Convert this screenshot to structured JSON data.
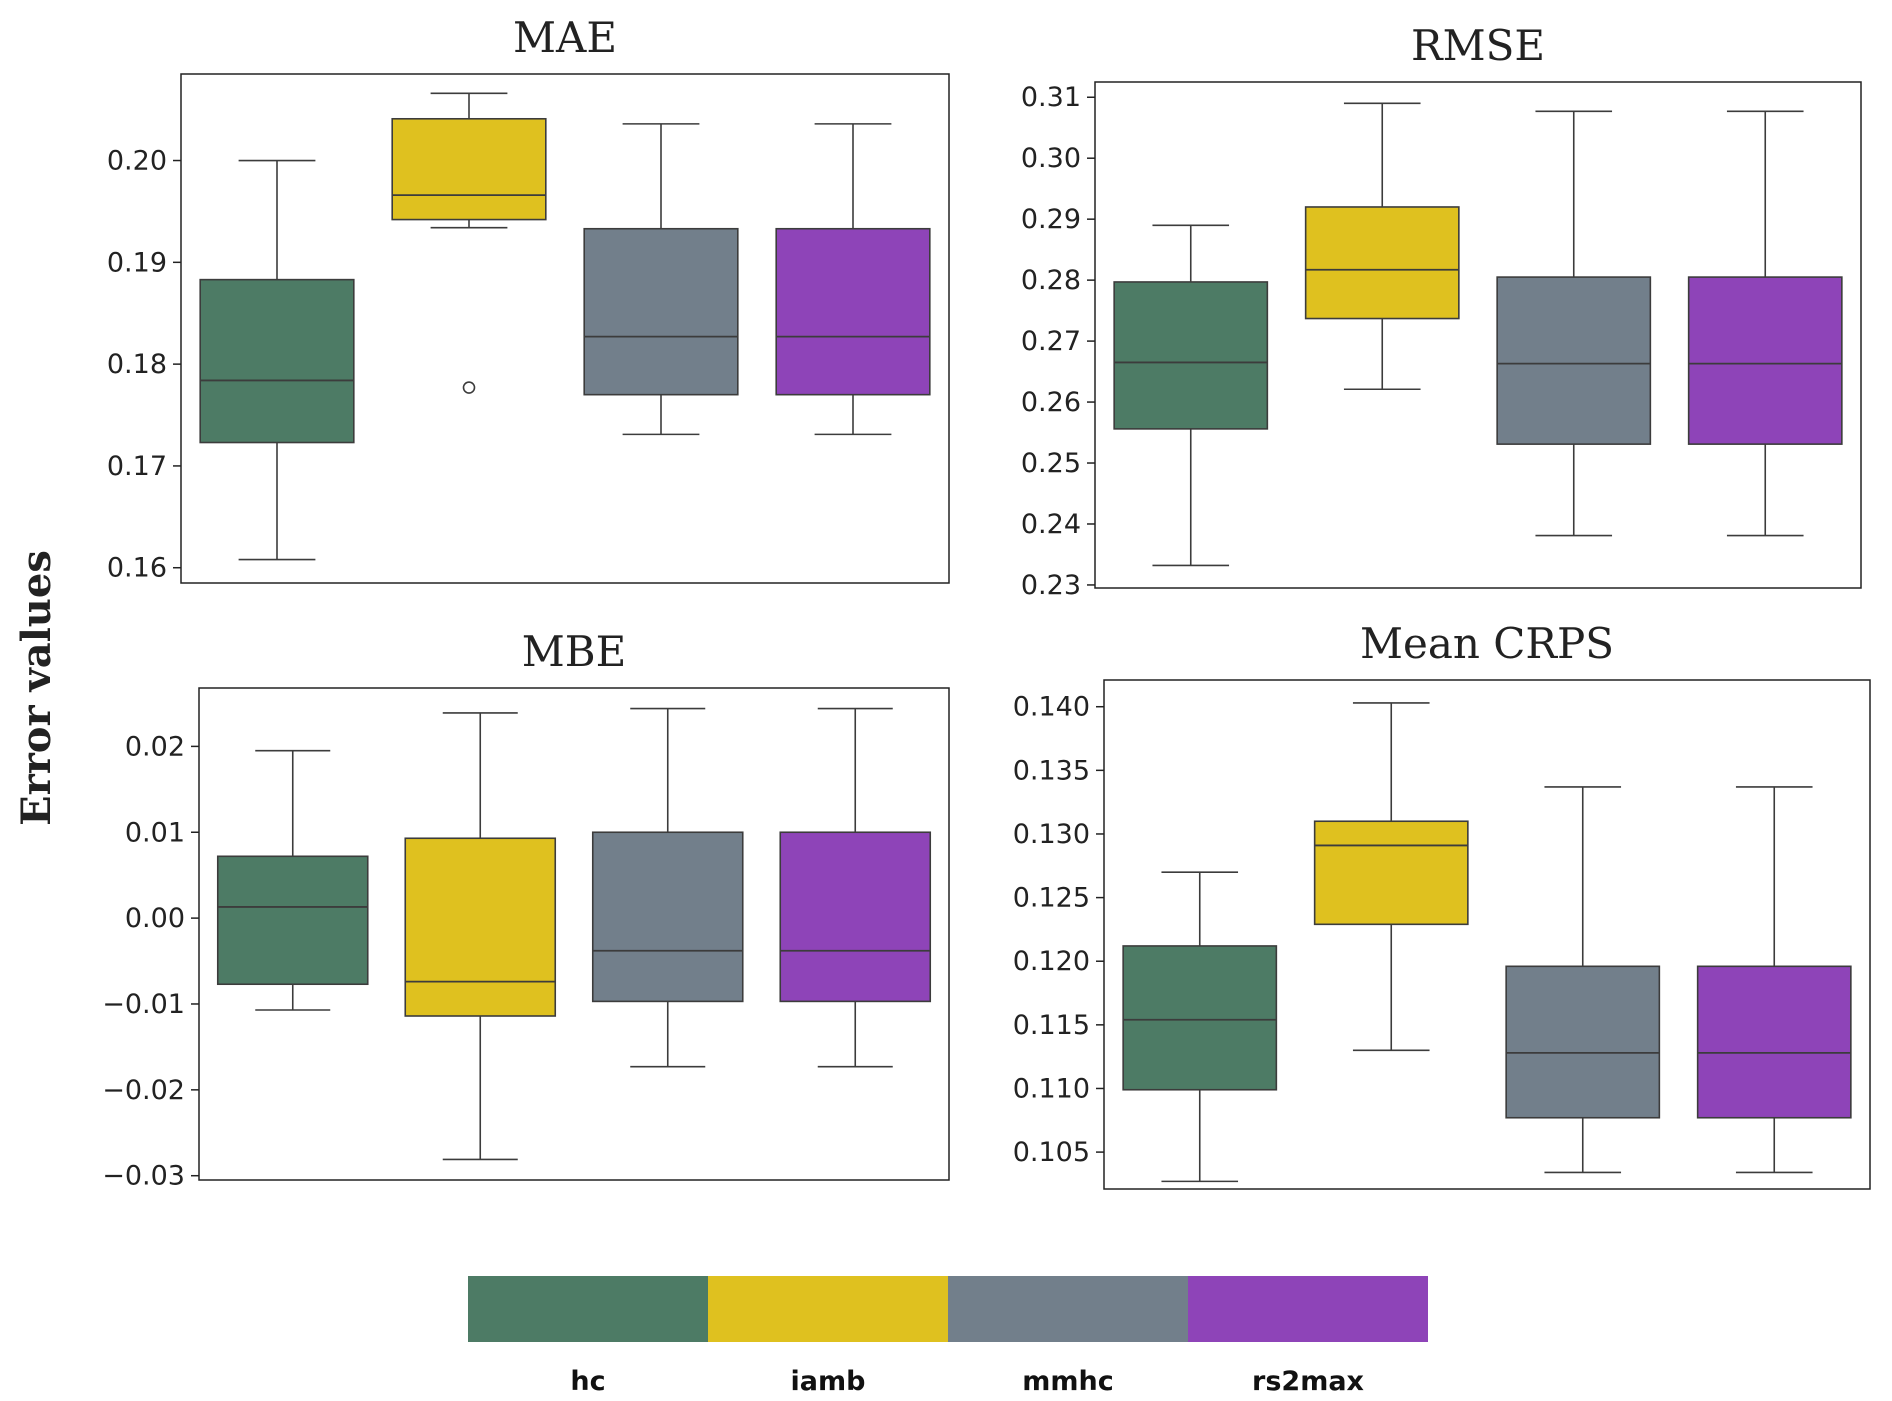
{
  "figure": {
    "ylabel": "Error values"
  },
  "legend": {
    "entries": [
      {
        "label": "hc",
        "color": "#4d7b65"
      },
      {
        "label": "iamb",
        "color": "#dfc11f"
      },
      {
        "label": "mmhc",
        "color": "#727f8b"
      },
      {
        "label": "rs2max",
        "color": "#8e44b8"
      }
    ]
  },
  "chart_data": [
    {
      "type": "box",
      "title": "MAE",
      "categories": [
        "hc",
        "iamb",
        "mmhc",
        "rs2max"
      ],
      "ylim": [
        0.1585,
        0.2085
      ],
      "ticks": [
        0.16,
        0.17,
        0.18,
        0.19,
        0.2
      ],
      "tick_labels": [
        "0.16",
        "0.17",
        "0.18",
        "0.19",
        "0.20"
      ],
      "boxes": [
        {
          "name": "hc",
          "whislo": 0.1608,
          "q1": 0.1723,
          "med": 0.1784,
          "q3": 0.1883,
          "whishi": 0.2,
          "fliers": []
        },
        {
          "name": "iamb",
          "whislo": 0.1934,
          "q1": 0.1942,
          "med": 0.1966,
          "q3": 0.2041,
          "whishi": 0.2066,
          "fliers": [
            0.1777
          ]
        },
        {
          "name": "mmhc",
          "whislo": 0.1731,
          "q1": 0.177,
          "med": 0.1827,
          "q3": 0.1933,
          "whishi": 0.2036,
          "fliers": []
        },
        {
          "name": "rs2max",
          "whislo": 0.1731,
          "q1": 0.177,
          "med": 0.1827,
          "q3": 0.1933,
          "whishi": 0.2036,
          "fliers": []
        }
      ]
    },
    {
      "type": "box",
      "title": "RMSE",
      "categories": [
        "hc",
        "iamb",
        "mmhc",
        "rs2max"
      ],
      "ylim": [
        0.2295,
        0.3125
      ],
      "ticks": [
        0.23,
        0.24,
        0.25,
        0.26,
        0.27,
        0.28,
        0.29,
        0.3,
        0.31
      ],
      "tick_labels": [
        "0.23",
        "0.24",
        "0.25",
        "0.26",
        "0.27",
        "0.28",
        "0.29",
        "0.30",
        "0.31"
      ],
      "boxes": [
        {
          "name": "hc",
          "whislo": 0.2332,
          "q1": 0.2556,
          "med": 0.2665,
          "q3": 0.2797,
          "whishi": 0.289,
          "fliers": []
        },
        {
          "name": "iamb",
          "whislo": 0.2621,
          "q1": 0.2737,
          "med": 0.2817,
          "q3": 0.292,
          "whishi": 0.309,
          "fliers": []
        },
        {
          "name": "mmhc",
          "whislo": 0.2381,
          "q1": 0.2531,
          "med": 0.2663,
          "q3": 0.2805,
          "whishi": 0.3077,
          "fliers": []
        },
        {
          "name": "rs2max",
          "whislo": 0.2381,
          "q1": 0.2531,
          "med": 0.2663,
          "q3": 0.2805,
          "whishi": 0.3077,
          "fliers": []
        }
      ]
    },
    {
      "type": "box",
      "title": "MBE",
      "categories": [
        "hc",
        "iamb",
        "mmhc",
        "rs2max"
      ],
      "ylim": [
        -0.0305,
        0.0268
      ],
      "ticks": [
        -0.03,
        -0.02,
        -0.01,
        0.0,
        0.01,
        0.02
      ],
      "tick_labels": [
        "−0.03",
        "−0.02",
        "−0.01",
        "0.00",
        "0.01",
        "0.02"
      ],
      "boxes": [
        {
          "name": "hc",
          "whislo": -0.0107,
          "q1": -0.0077,
          "med": 0.0013,
          "q3": 0.0072,
          "whishi": 0.0195,
          "fliers": []
        },
        {
          "name": "iamb",
          "whislo": -0.0281,
          "q1": -0.0114,
          "med": -0.0074,
          "q3": 0.0093,
          "whishi": 0.0239,
          "fliers": []
        },
        {
          "name": "mmhc",
          "whislo": -0.0173,
          "q1": -0.0097,
          "med": -0.0038,
          "q3": 0.01,
          "whishi": 0.0244,
          "fliers": []
        },
        {
          "name": "rs2max",
          "whislo": -0.0173,
          "q1": -0.0097,
          "med": -0.0038,
          "q3": 0.01,
          "whishi": 0.0244,
          "fliers": []
        }
      ]
    },
    {
      "type": "box",
      "title": "Mean CRPS",
      "categories": [
        "hc",
        "iamb",
        "mmhc",
        "rs2max"
      ],
      "ylim": [
        0.1021,
        0.1421
      ],
      "ticks": [
        0.105,
        0.11,
        0.115,
        0.12,
        0.125,
        0.13,
        0.135,
        0.14
      ],
      "tick_labels": [
        "0.105",
        "0.110",
        "0.115",
        "0.120",
        "0.125",
        "0.130",
        "0.135",
        "0.140"
      ],
      "boxes": [
        {
          "name": "hc",
          "whislo": 0.1027,
          "q1": 0.1099,
          "med": 0.1154,
          "q3": 0.1212,
          "whishi": 0.127,
          "fliers": []
        },
        {
          "name": "iamb",
          "whislo": 0.113,
          "q1": 0.1229,
          "med": 0.1291,
          "q3": 0.131,
          "whishi": 0.1403,
          "fliers": []
        },
        {
          "name": "mmhc",
          "whislo": 0.1034,
          "q1": 0.1077,
          "med": 0.1128,
          "q3": 0.1196,
          "whishi": 0.1337,
          "fliers": []
        },
        {
          "name": "rs2max",
          "whislo": 0.1034,
          "q1": 0.1077,
          "med": 0.1128,
          "q3": 0.1196,
          "whishi": 0.1337,
          "fliers": []
        }
      ]
    }
  ]
}
